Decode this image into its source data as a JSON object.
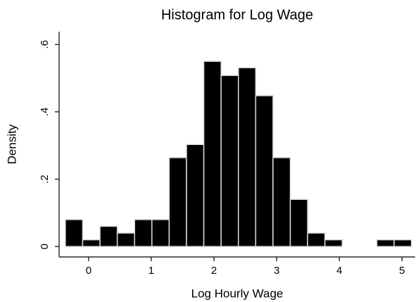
{
  "chart_data": {
    "type": "histogram",
    "title": "Histogram for Log Wage",
    "x_label": "Log Hourly Wage",
    "y_label": "Density",
    "bins": [
      -0.37,
      -0.094,
      0.182,
      0.458,
      0.734,
      1.01,
      1.286,
      1.562,
      1.838,
      2.114,
      2.39,
      2.666,
      2.942,
      3.218,
      3.494,
      3.77,
      4.046,
      4.322,
      4.598,
      4.874,
      5.15
    ],
    "values": [
      0.08,
      0.02,
      0.06,
      0.04,
      0.08,
      0.08,
      0.264,
      0.303,
      0.55,
      0.508,
      0.531,
      0.448,
      0.264,
      0.14,
      0.04,
      0.02,
      0,
      0,
      0.02,
      0.02
    ],
    "color": "#000000",
    "edge_color": "#d9d9d9",
    "xlim": [
      -0.47,
      5.21
    ],
    "xticks": [
      0,
      1,
      2,
      3,
      4,
      5
    ],
    "ylim": [
      -0.031,
      0.638
    ],
    "yticks": [
      0,
      {
        "value": 0.2,
        "label": ".2"
      },
      {
        "value": 0.4,
        "label": ".4"
      },
      {
        "value": 0.6,
        "label": ".6"
      }
    ]
  }
}
